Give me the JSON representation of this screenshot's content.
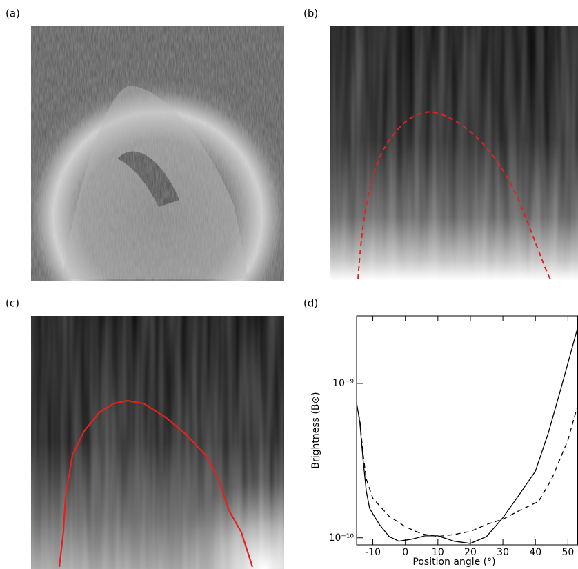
{
  "panel_labels": [
    "(a)",
    "(b)",
    "(c)",
    "(d)"
  ],
  "chart_data": {
    "type": "line",
    "xlabel": "Position angle (°)",
    "ylabel": "Brightness (B⊙)",
    "xlim": [
      -15,
      53
    ],
    "xticks": [
      -10,
      0,
      10,
      20,
      30,
      40,
      50
    ],
    "ylim": [
      9e-11,
      2.74e-09
    ],
    "ylog": true,
    "yticks": [
      {
        "value": 1e-10,
        "label": "10⁻¹⁰"
      },
      {
        "value": 1e-09,
        "label": "10⁻⁹"
      }
    ],
    "series": [
      {
        "color": "#000000",
        "style": "solid",
        "x": [
          -15,
          -14,
          -13,
          -12,
          -11,
          -8,
          -5,
          -2,
          2,
          6,
          10,
          15,
          20,
          25,
          30,
          35,
          40,
          44,
          48,
          53
        ],
        "values": [
          7.5e-10,
          5.6e-10,
          3.2e-10,
          2e-10,
          1.55e-10,
          1.22e-10,
          1.02e-10,
          9.5e-11,
          9.8e-11,
          1.03e-10,
          1.03e-10,
          9.5e-11,
          9.2e-11,
          1.02e-10,
          1.35e-10,
          1.9e-10,
          2.7e-10,
          4.8e-10,
          9.5e-10,
          2.3e-09
        ]
      },
      {
        "color": "#000000",
        "style": "dashed",
        "x": [
          -15,
          -14,
          -13,
          -12,
          -10,
          -5,
          0,
          5,
          10,
          15,
          20,
          25,
          30,
          35,
          41,
          45,
          50,
          53
        ],
        "values": [
          7.2e-10,
          5.8e-10,
          3.5e-10,
          2.4e-10,
          1.8e-10,
          1.38e-10,
          1.18e-10,
          1.06e-10,
          1.02e-10,
          1.05e-10,
          1.1e-10,
          1.22e-10,
          1.32e-10,
          1.5e-10,
          1.72e-10,
          2.4e-10,
          4.3e-10,
          7.2e-10
        ]
      }
    ]
  }
}
